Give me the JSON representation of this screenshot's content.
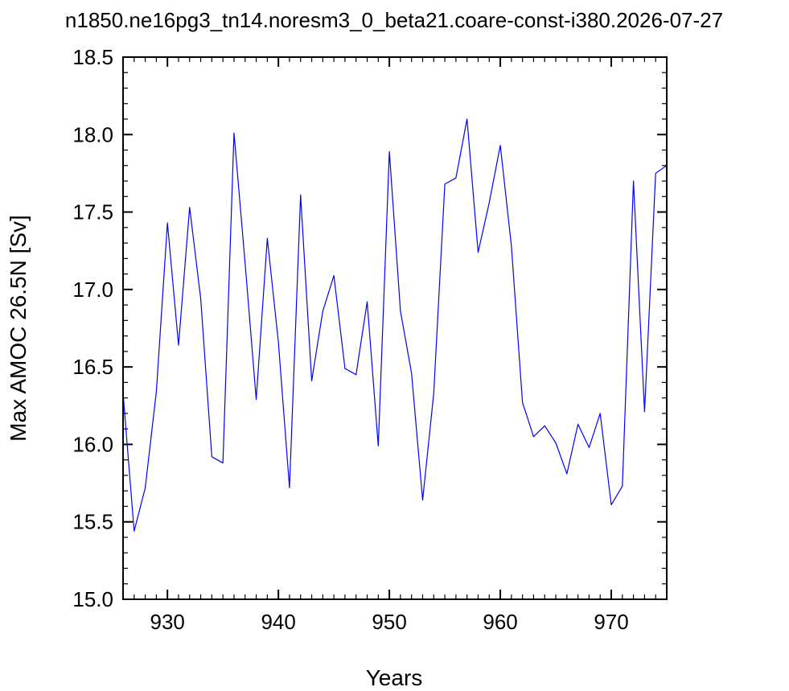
{
  "chart_data": {
    "type": "line",
    "title": "n1850.ne16pg3_tn14.noresm3_0_beta21.coare-const-i380.2026-07-27",
    "xlabel": "Years",
    "ylabel": "Max AMOC 26.5N [Sv]",
    "xlim": [
      926,
      975
    ],
    "ylim": [
      15.0,
      18.5
    ],
    "x_ticks": [
      930,
      940,
      950,
      960,
      970
    ],
    "x_tick_labels": [
      "930",
      "940",
      "950",
      "960",
      "970"
    ],
    "y_ticks": [
      15.0,
      15.5,
      16.0,
      16.5,
      17.0,
      17.5,
      18.0,
      18.5
    ],
    "y_tick_labels": [
      "15.0",
      "15.5",
      "16.0",
      "16.5",
      "17.0",
      "17.5",
      "18.0",
      "18.5"
    ],
    "grid": false,
    "line_color": "#0000ff",
    "series": [
      {
        "x": [
          926,
          927,
          928,
          929,
          930,
          931,
          932,
          933,
          934,
          935,
          936,
          937,
          938,
          939,
          940,
          941,
          942,
          943,
          944,
          945,
          946,
          947,
          948,
          949,
          950,
          951,
          952,
          953,
          954,
          955,
          956,
          957,
          958,
          959,
          960,
          961,
          962,
          963,
          964,
          965,
          966,
          967,
          968,
          969,
          970,
          971,
          972,
          973,
          974,
          975
        ],
        "values": [
          16.33,
          15.44,
          15.72,
          16.34,
          17.43,
          16.64,
          17.53,
          16.94,
          15.92,
          15.88,
          18.01,
          17.17,
          16.29,
          17.33,
          16.66,
          15.72,
          17.61,
          16.41,
          16.86,
          17.09,
          16.49,
          16.45,
          16.92,
          15.99,
          17.89,
          16.86,
          16.46,
          15.64,
          16.33,
          17.68,
          17.72,
          18.1,
          17.24,
          17.56,
          17.93,
          17.28,
          16.27,
          16.05,
          16.12,
          16.01,
          15.81,
          16.13,
          15.98,
          16.2,
          15.61,
          15.73,
          17.7,
          16.21,
          17.75,
          17.8
        ]
      }
    ]
  }
}
